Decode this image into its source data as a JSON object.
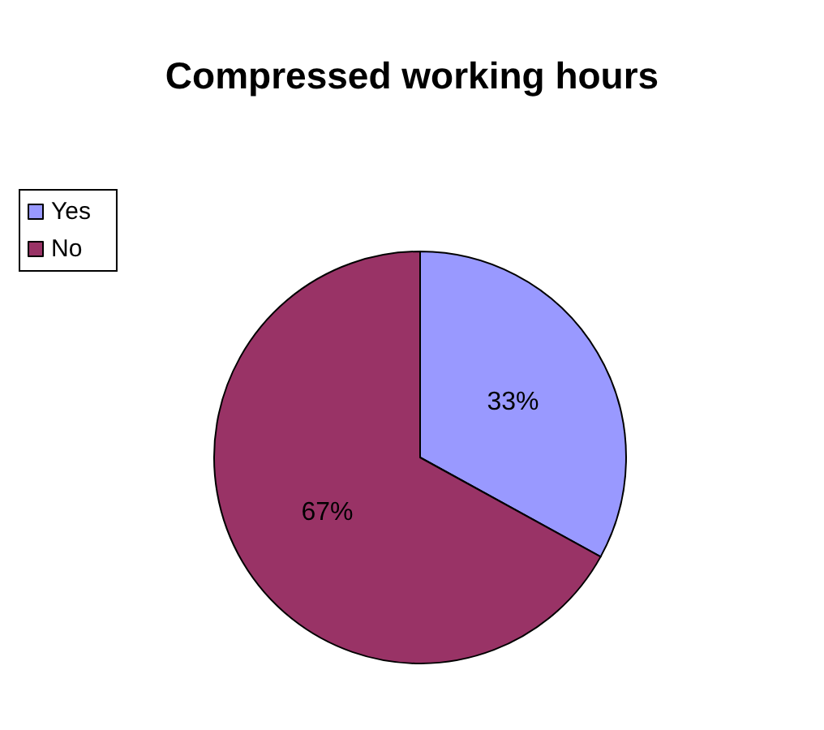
{
  "chart_data": {
    "type": "pie",
    "title": "Compressed working hours",
    "categories": [
      "Yes",
      "No"
    ],
    "values": [
      33,
      67
    ],
    "colors": [
      "#9999ff",
      "#993366"
    ],
    "value_labels": [
      "33%",
      "67%"
    ],
    "legend": "left"
  }
}
